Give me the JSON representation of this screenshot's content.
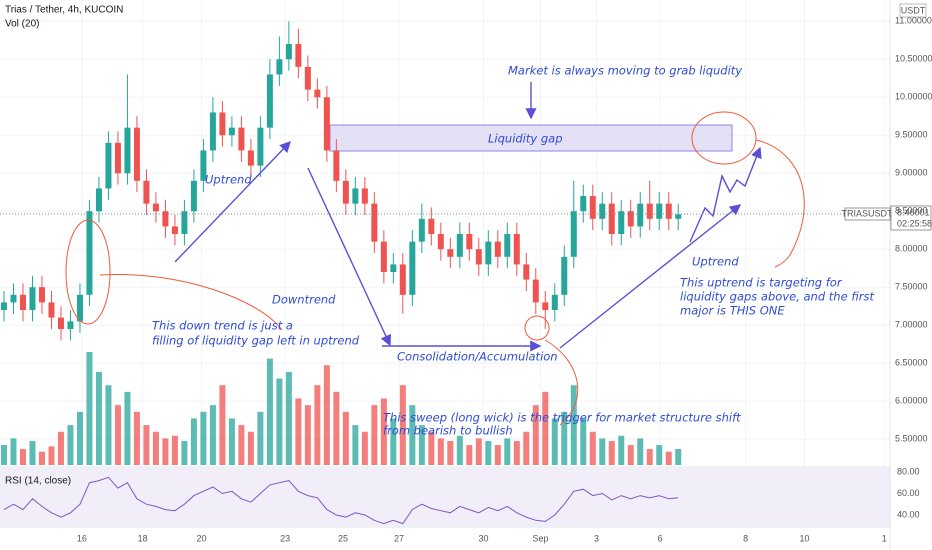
{
  "header": {
    "symbol": "Trias / Tether, 4h, KUCOIN",
    "volume_label": "Vol (20)",
    "rsi_label": "RSI (14, close)",
    "currency": "USDT",
    "ticker": "TRIASUSDT",
    "countdown": "02:25:58"
  },
  "annotations": [
    "Market is always moving to grab liqudity",
    "Liquidity gap",
    "Uptrend",
    "Downtrend",
    "This down trend is just a",
    "filling of liquidity gap left in uptrend",
    "Consolidation/Accumulation",
    "Uptrend",
    "This uptrend is targeting for",
    "liquidity gaps above, and the first",
    "major is THIS ONE",
    "This sweep (long wick) is the trigger for market structure shift",
    "from bearish to bullish"
  ],
  "chart_data": {
    "type": "candlestick",
    "up_color": "#26a69a",
    "down_color": "#ef5350",
    "open": [
      7.2,
      7.3,
      7.4,
      7.2,
      7.5,
      7.3,
      7.1,
      6.95,
      7.05,
      7.4,
      8.5,
      8.8,
      9.4,
      9.0,
      9.6,
      8.9,
      8.6,
      8.5,
      8.3,
      8.2,
      8.5,
      8.9,
      9.3,
      9.8,
      9.5,
      9.6,
      9.3,
      9.1,
      9.6,
      10.3,
      10.5,
      10.7,
      10.4,
      10.1,
      10.0,
      9.3,
      8.9,
      8.6,
      8.8,
      8.6,
      8.1,
      7.7,
      7.8,
      7.4,
      8.1,
      8.4,
      8.2,
      8.0,
      7.9,
      8.2,
      8.0,
      7.8,
      8.1,
      7.9,
      8.2,
      7.8,
      7.6,
      7.3,
      7.2,
      7.4,
      7.9,
      8.5,
      8.7,
      8.4,
      8.6,
      8.2,
      8.5,
      8.3,
      8.6,
      8.4,
      8.6,
      8.4
    ],
    "high": [
      7.45,
      7.55,
      7.55,
      7.65,
      7.65,
      7.45,
      7.25,
      7.2,
      7.55,
      8.65,
      8.95,
      9.55,
      9.55,
      10.3,
      9.75,
      9.05,
      8.75,
      8.65,
      8.45,
      8.65,
      9.05,
      9.45,
      10.0,
      9.95,
      9.75,
      9.75,
      9.45,
      9.75,
      10.5,
      10.8,
      11.0,
      10.9,
      10.55,
      10.25,
      10.15,
      9.45,
      9.05,
      8.95,
      8.95,
      8.75,
      8.25,
      7.95,
      7.95,
      8.25,
      8.6,
      8.55,
      8.35,
      8.15,
      8.35,
      8.35,
      8.15,
      8.25,
      8.25,
      8.35,
      8.35,
      7.95,
      7.75,
      7.45,
      7.55,
      8.05,
      8.9,
      8.85,
      8.85,
      8.75,
      8.75,
      8.65,
      8.65,
      8.75,
      8.9,
      8.75,
      8.75,
      8.6
    ],
    "low": [
      7.05,
      7.15,
      7.05,
      7.05,
      7.15,
      6.95,
      6.8,
      6.8,
      6.9,
      7.25,
      8.35,
      8.65,
      8.85,
      8.85,
      8.75,
      8.45,
      8.35,
      8.15,
      8.05,
      8.05,
      8.35,
      8.75,
      9.15,
      9.35,
      9.35,
      9.15,
      8.95,
      8.95,
      9.45,
      10.15,
      10.35,
      10.25,
      9.95,
      9.85,
      9.15,
      8.75,
      8.45,
      8.45,
      8.45,
      7.95,
      7.55,
      7.55,
      7.15,
      7.25,
      7.95,
      8.05,
      7.85,
      7.75,
      7.75,
      7.85,
      7.65,
      7.65,
      7.75,
      7.75,
      7.65,
      7.45,
      7.15,
      6.95,
      7.05,
      7.25,
      7.75,
      8.35,
      8.25,
      8.25,
      8.05,
      8.05,
      8.15,
      8.15,
      8.25,
      8.25,
      8.25,
      8.25
    ],
    "close": [
      7.3,
      7.4,
      7.2,
      7.5,
      7.3,
      7.1,
      6.95,
      7.05,
      7.4,
      8.5,
      8.8,
      9.4,
      9.0,
      9.6,
      8.9,
      8.6,
      8.5,
      8.3,
      8.2,
      8.5,
      8.9,
      9.3,
      9.8,
      9.5,
      9.6,
      9.3,
      9.1,
      9.6,
      10.3,
      10.5,
      10.7,
      10.4,
      10.1,
      10.0,
      9.3,
      8.9,
      8.6,
      8.8,
      8.6,
      8.1,
      7.7,
      7.8,
      7.4,
      8.1,
      8.4,
      8.2,
      8.0,
      7.9,
      8.2,
      8.0,
      7.8,
      8.1,
      7.9,
      8.2,
      7.8,
      7.6,
      7.3,
      7.2,
      7.4,
      7.9,
      8.5,
      8.7,
      8.4,
      8.6,
      8.2,
      8.5,
      8.3,
      8.6,
      8.4,
      8.6,
      8.4,
      8.46
    ],
    "volume": [
      15,
      20,
      12,
      18,
      10,
      14,
      25,
      30,
      40,
      85,
      70,
      60,
      45,
      55,
      40,
      30,
      25,
      20,
      22,
      18,
      35,
      40,
      45,
      60,
      35,
      30,
      25,
      40,
      80,
      65,
      70,
      50,
      45,
      60,
      75,
      55,
      40,
      30,
      25,
      45,
      50,
      35,
      60,
      45,
      30,
      25,
      20,
      18,
      22,
      15,
      20,
      18,
      15,
      20,
      18,
      25,
      45,
      55,
      35,
      40,
      60,
      35,
      25,
      20,
      18,
      22,
      15,
      20,
      12,
      15,
      10,
      12
    ],
    "vlim": [
      0,
      100
    ],
    "ylim": [
      5.16,
      11.28
    ],
    "yticks": [
      {
        "value": 11.0,
        "label": "11.00000"
      },
      {
        "value": 10.5,
        "label": "10.50000"
      },
      {
        "value": 10.0,
        "label": "10.00000"
      },
      {
        "value": 9.5,
        "label": "9.50000"
      },
      {
        "value": 9.0,
        "label": "9.00000"
      },
      {
        "value": 8.5,
        "label": "8.50000"
      },
      {
        "value": 8.0,
        "label": "8.00000"
      },
      {
        "value": 7.5,
        "label": "7.50000"
      },
      {
        "value": 7.0,
        "label": "7.00000"
      },
      {
        "value": 6.5,
        "label": "6.50000"
      },
      {
        "value": 6.0,
        "label": "6.00000"
      },
      {
        "value": 5.5,
        "label": "5.50000"
      }
    ],
    "xlim": [
      -0.42,
      93.3
    ],
    "xticks": [
      {
        "value": 8.2,
        "label": "16"
      },
      {
        "value": 14.6,
        "label": "18"
      },
      {
        "value": 20.8,
        "label": "20"
      },
      {
        "value": 29.6,
        "label": "23"
      },
      {
        "value": 35.7,
        "label": "25"
      },
      {
        "value": 41.6,
        "label": "27"
      },
      {
        "value": 50.5,
        "label": "30"
      },
      {
        "value": 56.5,
        "label": "Sep"
      },
      {
        "value": 62.4,
        "label": "3"
      },
      {
        "value": 69.1,
        "label": "6"
      },
      {
        "value": 78.1,
        "label": "8"
      },
      {
        "value": 84.3,
        "label": "10"
      },
      {
        "value": 92.7,
        "label": "1"
      }
    ],
    "last_price": 8.46001,
    "grid": true,
    "rsi": {
      "color": "#7e57c2",
      "values": [
        45,
        50,
        45,
        55,
        48,
        42,
        38,
        42,
        50,
        70,
        72,
        75,
        65,
        70,
        55,
        50,
        48,
        45,
        44,
        50,
        58,
        62,
        66,
        60,
        62,
        55,
        52,
        60,
        68,
        70,
        72,
        62,
        58,
        56,
        45,
        40,
        38,
        42,
        40,
        35,
        32,
        35,
        32,
        45,
        50,
        46,
        44,
        42,
        48,
        45,
        42,
        47,
        44,
        48,
        42,
        38,
        35,
        34,
        40,
        50,
        62,
        64,
        58,
        60,
        54,
        58,
        55,
        58,
        56,
        58,
        55,
        56
      ],
      "ylim": [
        28.8,
        83.7
      ],
      "yticks": [
        {
          "value": 80,
          "label": "80.00"
        },
        {
          "value": 60,
          "label": "60.00"
        },
        {
          "value": 40,
          "label": "40.00"
        }
      ]
    }
  }
}
